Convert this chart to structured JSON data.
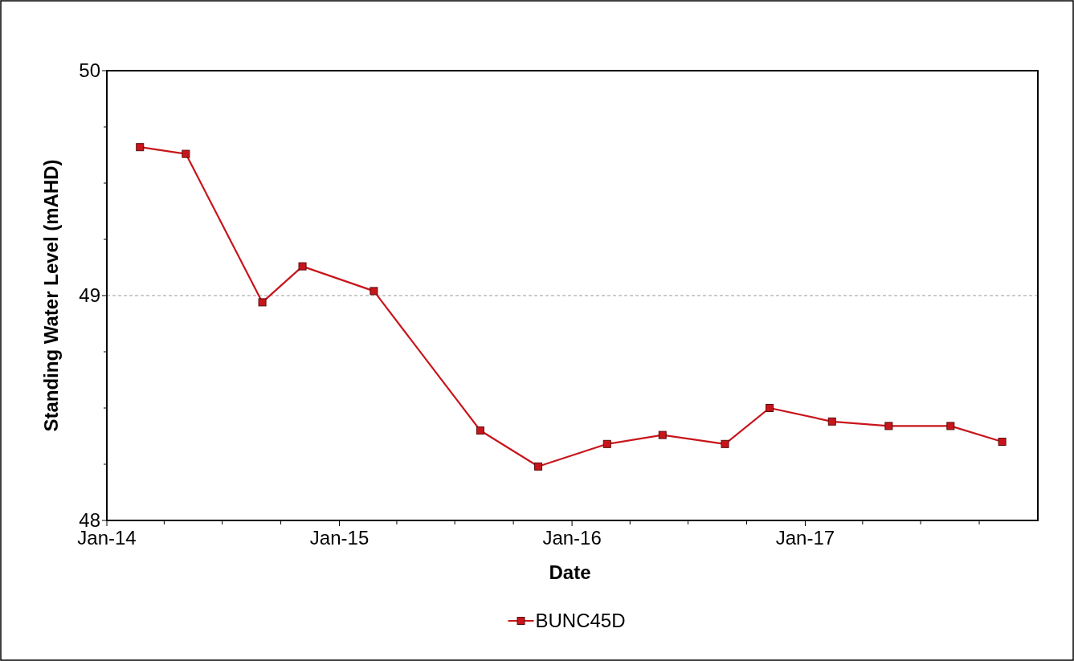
{
  "chart_data": {
    "type": "line",
    "xlabel": "Date",
    "ylabel": "Standing Water Level (mAHD)",
    "x": [
      "2014-02-22",
      "2014-05-05",
      "2014-09-02",
      "2014-11-04",
      "2015-02-24",
      "2015-08-10",
      "2015-11-09",
      "2016-02-25",
      "2016-05-22",
      "2016-08-28",
      "2016-11-06",
      "2017-02-12",
      "2017-05-12",
      "2017-08-17",
      "2017-11-06"
    ],
    "series": [
      {
        "name": "BUNC45D",
        "color": "#c8151b",
        "values": [
          49.66,
          49.63,
          48.97,
          49.13,
          49.02,
          48.4,
          48.24,
          48.34,
          48.38,
          48.34,
          48.5,
          48.44,
          48.42,
          48.42,
          48.35
        ]
      }
    ],
    "xlim": [
      "2014-01-01",
      "2018-01-01"
    ],
    "xticks": [
      {
        "value": "2014-01",
        "label": "Jan-14"
      },
      {
        "value": "2014-04",
        "label": null
      },
      {
        "value": "2014-07",
        "label": null
      },
      {
        "value": "2014-10",
        "label": null
      },
      {
        "value": "2015-01",
        "label": "Jan-15"
      },
      {
        "value": "2015-04",
        "label": null
      },
      {
        "value": "2015-07",
        "label": null
      },
      {
        "value": "2015-10",
        "label": null
      },
      {
        "value": "2016-01",
        "label": "Jan-16"
      },
      {
        "value": "2016-04",
        "label": null
      },
      {
        "value": "2016-07",
        "label": null
      },
      {
        "value": "2016-10",
        "label": null
      },
      {
        "value": "2017-01",
        "label": "Jan-17"
      },
      {
        "value": "2017-04",
        "label": null
      },
      {
        "value": "2017-07",
        "label": null
      },
      {
        "value": "2017-10",
        "label": null
      }
    ],
    "ylim": [
      48,
      50
    ],
    "yticks": [
      48,
      {
        "value": 48.25,
        "label": null
      },
      {
        "value": 48.5,
        "label": null
      },
      {
        "value": 48.75,
        "label": null
      },
      49,
      {
        "value": 49.25,
        "label": null
      },
      {
        "value": 49.5,
        "label": null
      },
      {
        "value": 49.75,
        "label": null
      },
      50
    ],
    "grid": "y",
    "marker": "square",
    "line_style": "solid",
    "legend": "bottom"
  }
}
